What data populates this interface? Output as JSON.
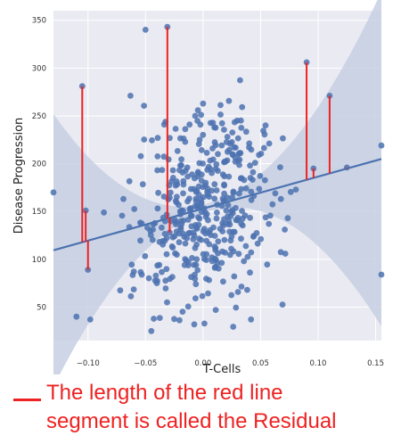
{
  "chart_data": {
    "type": "scatter",
    "xlabel": "T-Cells",
    "ylabel": "Disease Progression",
    "xlim": [
      -0.13,
      0.155
    ],
    "ylim": [
      15,
      360
    ],
    "x_ticks": [
      -0.1,
      -0.05,
      0.0,
      0.05,
      0.1,
      0.15
    ],
    "x_tick_labels": [
      "−0.10",
      "−0.05",
      "0.00",
      "0.05",
      "0.10",
      "0.15"
    ],
    "y_ticks": [
      50,
      100,
      150,
      200,
      250,
      300,
      350
    ],
    "y_tick_labels": [
      "50",
      "100",
      "150",
      "200",
      "250",
      "300",
      "350"
    ],
    "grid": true,
    "regression": {
      "slope": 335,
      "intercept": 153,
      "band": "95% confidence interval"
    },
    "residuals": [
      {
        "x": -0.105,
        "y": 281
      },
      {
        "x": -0.102,
        "y": 151
      },
      {
        "x": -0.1,
        "y": 89
      },
      {
        "x": -0.031,
        "y": 343
      },
      {
        "x": -0.029,
        "y": 128
      },
      {
        "x": 0.09,
        "y": 306
      },
      {
        "x": 0.096,
        "y": 195
      },
      {
        "x": 0.11,
        "y": 271
      },
      {
        "x": 0.125,
        "y": 196
      }
    ],
    "n_points": 430,
    "colors": {
      "points": "#4c72b0",
      "line": "#4c72b0",
      "band": "#c5cfe3",
      "residual": "#ee2222",
      "background": "#eaeaf2",
      "grid": "#ffffff"
    }
  },
  "annotation": {
    "lines": [
      "The length of the red line",
      "segment is called the Residual"
    ],
    "color": "#ee2222"
  }
}
